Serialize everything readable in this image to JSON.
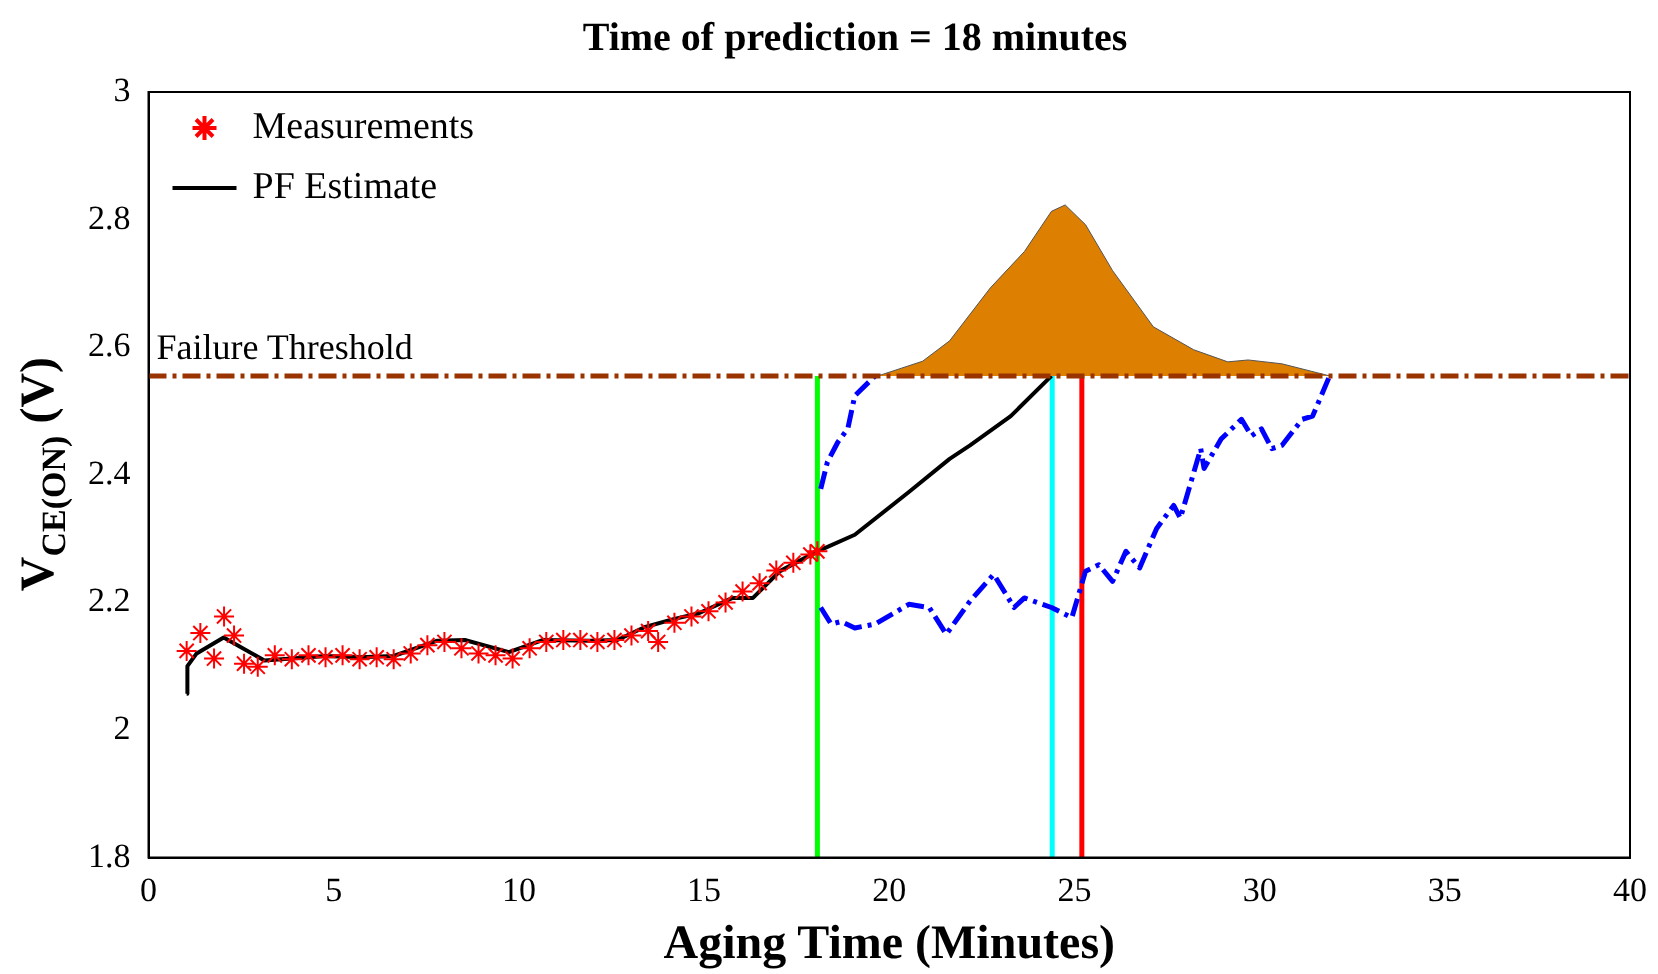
{
  "chart_data": {
    "type": "line",
    "title": "Time of prediction = 18 minutes",
    "xlabel": "Aging Time (Minutes)",
    "ylabel": "V$_{CE(ON)}$ (V)",
    "xlim": [
      0,
      40
    ],
    "xticks": [
      0,
      5,
      10,
      15,
      20,
      25,
      30,
      35,
      40
    ],
    "ylim": [
      1.8,
      3
    ],
    "yticks": [
      1.8,
      2,
      2.2,
      2.4,
      2.6,
      2.8,
      3
    ],
    "grid": false,
    "legend": "top left",
    "ref_lines": [
      {
        "axis": "y",
        "value": 2.555,
        "label": "Failure Threshold",
        "color": "#993300",
        "line_style": "dashed"
      }
    ],
    "series": [
      {
        "type": "area",
        "color": "#dd7f00",
        "x": [
          19.62,
          19.8,
          20.9,
          21.63,
          22.73,
          23.65,
          24.38,
          24.75,
          25.3,
          26.03,
          27.13,
          28.22,
          29.14,
          29.69,
          30.6,
          31.89
        ],
        "values": [
          2.555,
          2.557,
          2.578,
          2.61,
          2.693,
          2.75,
          2.813,
          2.823,
          2.792,
          2.72,
          2.632,
          2.596,
          2.577,
          2.58,
          2.574,
          2.555
        ]
      },
      {
        "type": "scatter",
        "name": "Measurements",
        "color": "#ff0000",
        "marker": "cross",
        "x": [
          1.03,
          1.4,
          1.77,
          2.04,
          2.31,
          2.58,
          2.95,
          3.41,
          3.87,
          4.32,
          4.78,
          5.24,
          5.7,
          6.16,
          6.62,
          7.08,
          7.53,
          7.99,
          8.45,
          8.91,
          9.37,
          9.83,
          10.29,
          10.74,
          11.2,
          11.66,
          12.12,
          12.58,
          13.04,
          13.49,
          13.76,
          14.2,
          14.66,
          15.12,
          15.58,
          16.04,
          16.5,
          16.95,
          17.41,
          17.87,
          18.06
        ],
        "values": [
          2.124,
          2.152,
          2.112,
          2.178,
          2.148,
          2.104,
          2.099,
          2.117,
          2.111,
          2.117,
          2.114,
          2.117,
          2.111,
          2.114,
          2.111,
          2.12,
          2.133,
          2.138,
          2.128,
          2.12,
          2.117,
          2.112,
          2.128,
          2.138,
          2.141,
          2.141,
          2.138,
          2.141,
          2.148,
          2.155,
          2.138,
          2.168,
          2.178,
          2.186,
          2.2,
          2.217,
          2.23,
          2.25,
          2.262,
          2.275,
          2.28
        ]
      },
      {
        "name": "PF Estimate",
        "color": "#000000",
        "x": [
          1.03,
          1.05,
          1.3,
          2.03,
          3.13,
          4.78,
          5.7,
          6.62,
          7.8,
          8.54,
          9.73,
          10.64,
          11.92,
          12.66,
          13.39,
          14.12,
          14.86,
          15.77,
          16.32,
          17.05,
          18.06,
          19.07,
          20.53,
          21.63,
          22.18,
          23.28,
          24.38
        ],
        "values": [
          2.057,
          2.1,
          2.12,
          2.145,
          2.109,
          2.116,
          2.114,
          2.116,
          2.14,
          2.141,
          2.122,
          2.141,
          2.14,
          2.141,
          2.161,
          2.173,
          2.183,
          2.207,
          2.207,
          2.249,
          2.28,
          2.306,
          2.373,
          2.425,
          2.446,
          2.492,
          2.555
        ]
      },
      {
        "type": "line",
        "color": "#0000ff",
        "line_style": "dashed",
        "x": [
          18.15,
          18.33,
          18.61,
          18.88,
          19.07,
          19.62
        ],
        "values": [
          2.378,
          2.42,
          2.451,
          2.472,
          2.524,
          2.555
        ]
      },
      {
        "type": "line",
        "color": "#0000ff",
        "line_style": "dashed",
        "x": [
          18.15,
          18.43,
          18.7,
          19.07,
          19.62,
          20.53,
          21.08,
          21.54,
          22.18,
          22.82,
          23.37,
          23.65,
          24.38,
          24.93,
          25.3,
          25.66,
          26.03,
          26.39,
          26.76,
          27.22,
          27.68,
          27.86,
          28.41,
          28.5,
          28.96,
          29.51,
          29.78,
          30.05,
          30.33,
          30.6,
          31.15,
          31.43,
          31.89
        ],
        "values": [
          2.192,
          2.166,
          2.17,
          2.16,
          2.166,
          2.197,
          2.192,
          2.15,
          2.202,
          2.244,
          2.192,
          2.207,
          2.192,
          2.176,
          2.249,
          2.259,
          2.233,
          2.28,
          2.254,
          2.316,
          2.352,
          2.332,
          2.441,
          2.41,
          2.456,
          2.487,
          2.461,
          2.472,
          2.441,
          2.446,
          2.487,
          2.492,
          2.555
        ]
      },
      {
        "type": "line",
        "color": "#00ff00",
        "x": [
          18.06,
          18.06
        ],
        "values": [
          1.8,
          2.555
        ]
      },
      {
        "type": "line",
        "color": "#00ffff",
        "x": [
          24.4,
          24.4
        ],
        "values": [
          1.8,
          2.555
        ]
      },
      {
        "type": "line",
        "color": "#ff0000",
        "x": [
          25.2,
          25.2
        ],
        "values": [
          1.8,
          2.555
        ]
      }
    ]
  }
}
